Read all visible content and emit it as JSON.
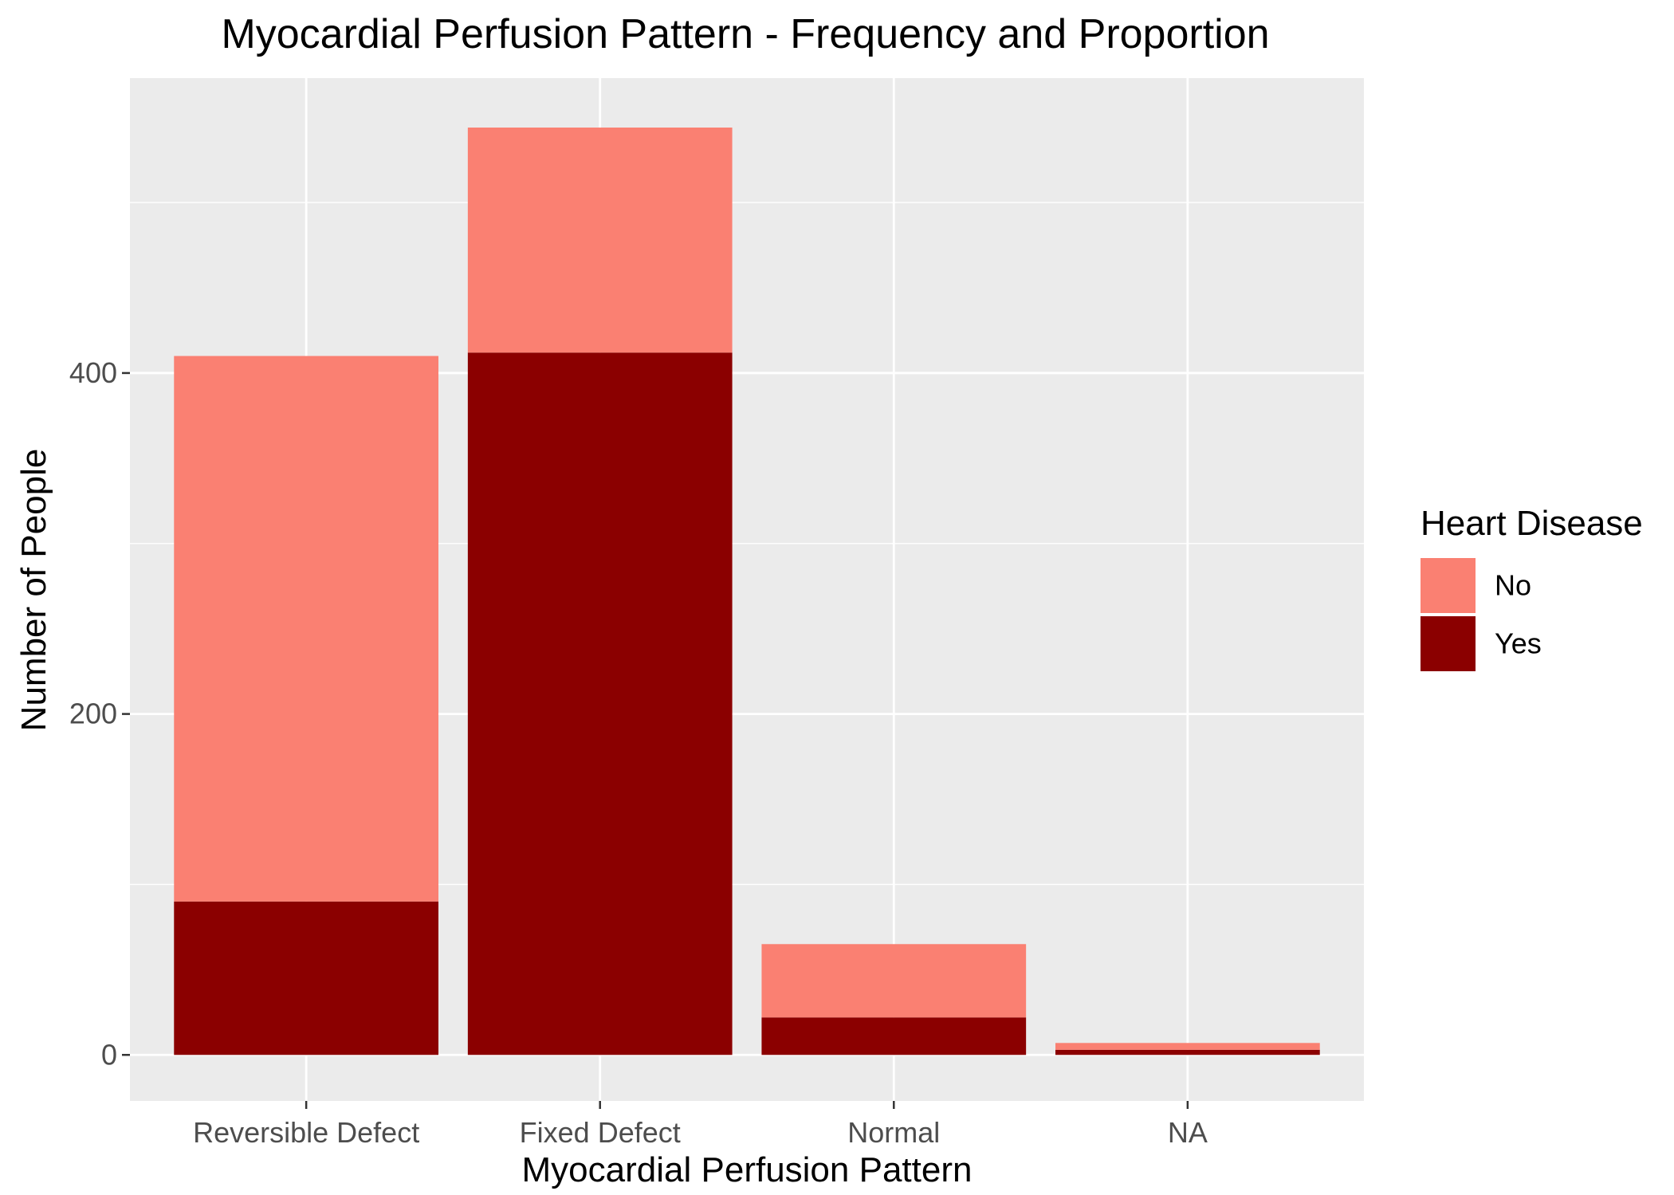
{
  "chart_data": {
    "type": "bar",
    "stacked": true,
    "title": "Myocardial Perfusion Pattern - Frequency and Proportion",
    "xlabel": "Myocardial Perfusion Pattern",
    "ylabel": "Number of People",
    "categories": [
      "Reversible Defect",
      "Fixed Defect",
      "Normal",
      "NA"
    ],
    "series": [
      {
        "name": "Yes",
        "color": "#8B0000",
        "values": [
          90,
          412,
          22,
          3
        ]
      },
      {
        "name": "No",
        "color": "#FA8072",
        "values": [
          320,
          132,
          43,
          4
        ]
      }
    ],
    "ylim": [
      -27,
      573
    ],
    "yticks": [
      0,
      200,
      400
    ],
    "ytick_labels": [
      "0",
      "200",
      "400"
    ],
    "grid": true,
    "legend": {
      "title": "Heart Disease",
      "position": "right",
      "entries": [
        {
          "label": "No",
          "color": "#FA8072"
        },
        {
          "label": "Yes",
          "color": "#8B0000"
        }
      ]
    },
    "colors": {
      "panel_background": "#EBEBEB",
      "grid": "#FFFFFF",
      "tick_text": "#4D4D4D",
      "tick_mark": "#333333"
    }
  }
}
